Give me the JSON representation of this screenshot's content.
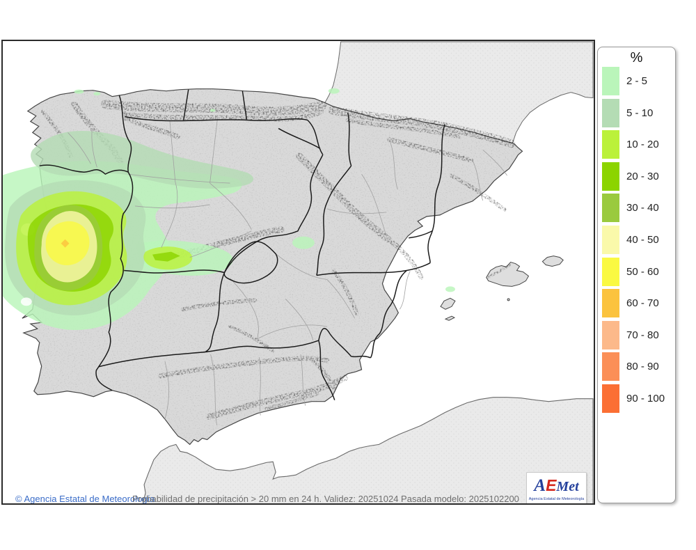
{
  "map": {
    "copyright": "© Agencia Estatal de Meteorología",
    "caption": "Probabilidad de precipitación > 20 mm en 24 h. Validez: 20251024 Pasada modelo: 2025102200",
    "logo": {
      "letter_a": "A",
      "letter_e": "E",
      "letter_met": "Met",
      "subtitle": "Agencia Estatal de Meteorología"
    }
  },
  "legend": {
    "title": "%",
    "items": [
      {
        "label": "2 - 5",
        "color": "#baf5ba"
      },
      {
        "label": "5 - 10",
        "color": "#b4dcb4"
      },
      {
        "label": "10 - 20",
        "color": "#bbf13a"
      },
      {
        "label": "20 - 30",
        "color": "#8cd400"
      },
      {
        "label": "30 - 40",
        "color": "#9aca3e"
      },
      {
        "label": "40 - 50",
        "color": "#faf9aa"
      },
      {
        "label": "50 - 60",
        "color": "#faf942"
      },
      {
        "label": "60 - 70",
        "color": "#fbc33e"
      },
      {
        "label": "70 - 80",
        "color": "#fcb98a"
      },
      {
        "label": "80 - 90",
        "color": "#fb8f57"
      },
      {
        "label": "90 - 100",
        "color": "#fb6f34"
      }
    ]
  },
  "colors": {
    "sea": "#ffffff",
    "iberia_land": "#d9d9d9",
    "neighbor_land": "#e9e9e9",
    "community_border": "#1a1a1a",
    "province_border": "#a0a0a0",
    "copyright_text": "#3a6cc8",
    "caption_text": "#6f6f6f",
    "logo_blue": "#24409c",
    "logo_red": "#d5281e"
  }
}
